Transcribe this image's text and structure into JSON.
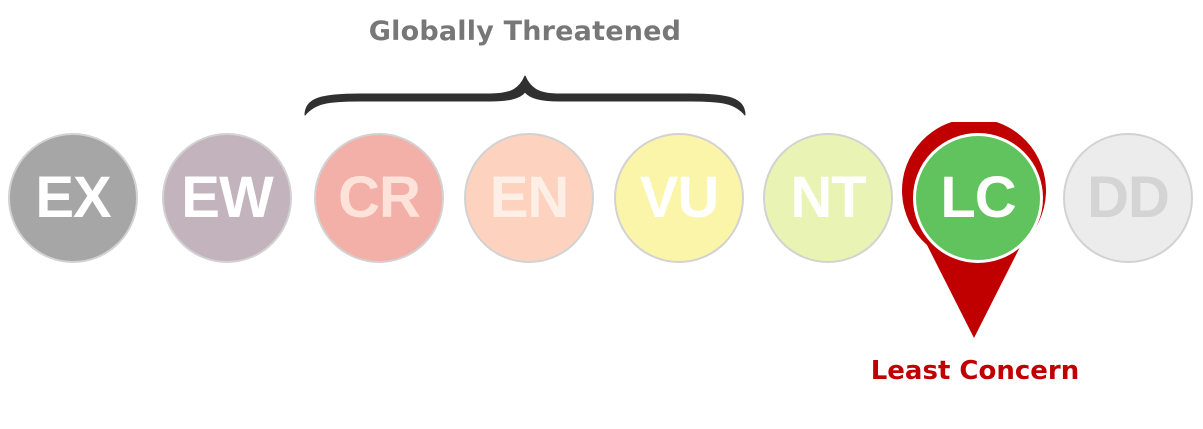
{
  "group": {
    "title": "Globally Threatened",
    "brace_color": "#303030"
  },
  "statuses": [
    {
      "code": "EX",
      "fill": "#a6a6a6",
      "text_color": "#ffffff"
    },
    {
      "code": "EW",
      "fill": "#c3b3bc",
      "text_color": "#ffffff"
    },
    {
      "code": "CR",
      "fill": "#f2b0a8",
      "text_color": "#fde2da"
    },
    {
      "code": "EN",
      "fill": "#fdd3bf",
      "text_color": "#fdeee6"
    },
    {
      "code": "VU",
      "fill": "#fbf5a9",
      "text_color": "#ffffff"
    },
    {
      "code": "NT",
      "fill": "#e9f4b4",
      "text_color": "#ffffff"
    },
    {
      "code": "LC",
      "fill": "#61c35d",
      "text_color": "#ffffff"
    },
    {
      "code": "DD",
      "fill": "#ececec",
      "text_color": "#d4d4d4"
    }
  ],
  "selected": {
    "code": "LC",
    "label": "Least Concern",
    "marker_color": "#c00000"
  }
}
